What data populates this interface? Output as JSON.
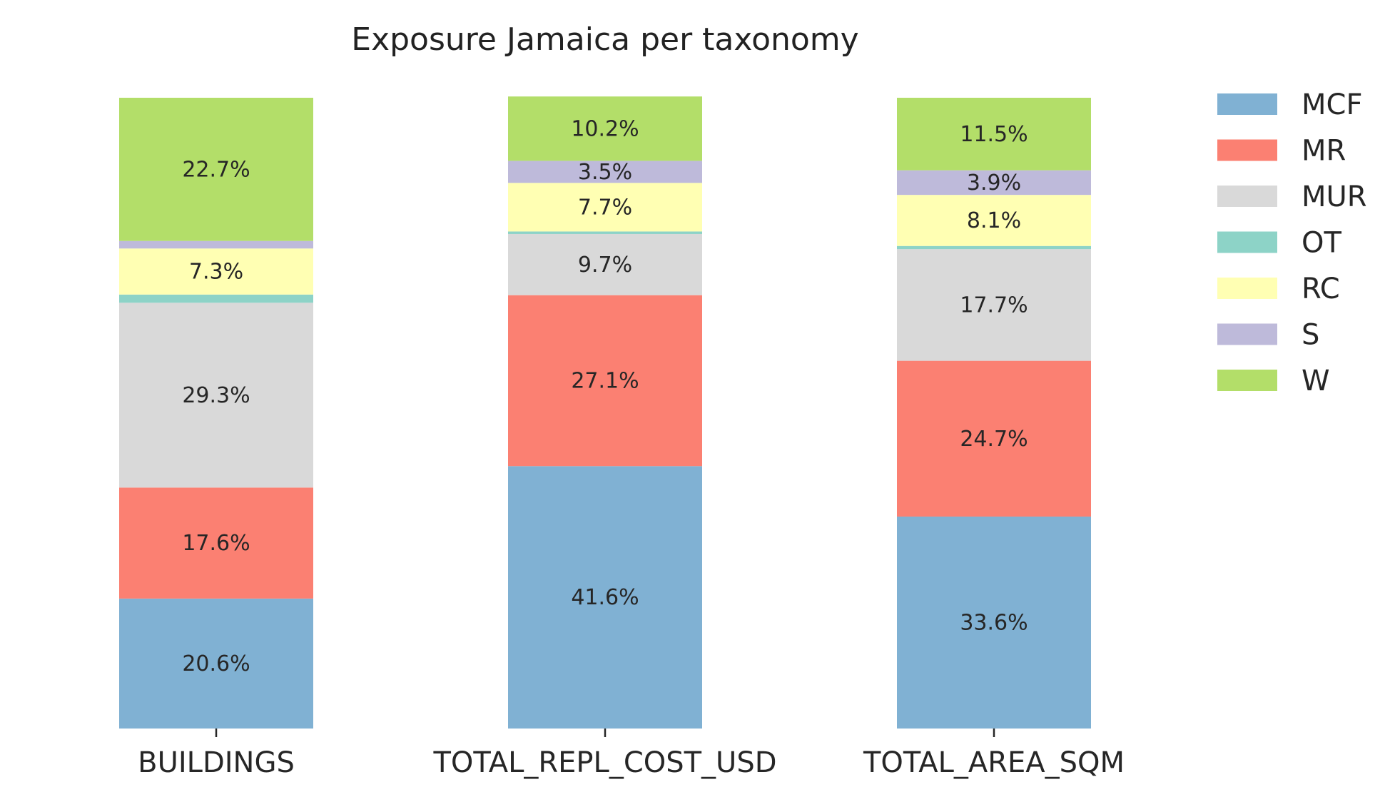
{
  "chart_data": {
    "type": "bar",
    "stacked": true,
    "normalized": true,
    "title": "Exposure Jamaica per taxonomy",
    "xlabel": "",
    "ylabel": "",
    "ylim": [
      0,
      100
    ],
    "grid": false,
    "legend_position": "top-right",
    "categories": [
      "BUILDINGS",
      "TOTAL_REPL_COST_USD",
      "TOTAL_AREA_SQM"
    ],
    "series": [
      {
        "name": "MCF",
        "color": "#80b1d3",
        "values": [
          20.6,
          41.6,
          33.6
        ],
        "labels": [
          "20.6%",
          "41.6%",
          "33.6%"
        ]
      },
      {
        "name": "MR",
        "color": "#fb8072",
        "values": [
          17.6,
          27.1,
          24.7
        ],
        "labels": [
          "17.6%",
          "27.1%",
          "24.7%"
        ]
      },
      {
        "name": "MUR",
        "color": "#d9d9d9",
        "values": [
          29.3,
          9.7,
          17.7
        ],
        "labels": [
          "29.3%",
          "9.7%",
          "17.7%"
        ]
      },
      {
        "name": "OT",
        "color": "#8dd3c7",
        "values": [
          1.3,
          0.4,
          0.5
        ],
        "labels": [
          "",
          "",
          ""
        ]
      },
      {
        "name": "RC",
        "color": "#ffffb3",
        "values": [
          7.3,
          7.7,
          8.1
        ],
        "labels": [
          "7.3%",
          "7.7%",
          "8.1%"
        ]
      },
      {
        "name": "S",
        "color": "#bebada",
        "values": [
          1.2,
          3.5,
          3.9
        ],
        "labels": [
          "",
          "3.5%",
          "3.9%"
        ]
      },
      {
        "name": "W",
        "color": "#b3de69",
        "values": [
          22.7,
          10.2,
          11.5
        ],
        "labels": [
          "22.7%",
          "10.2%",
          "11.5%"
        ]
      }
    ]
  }
}
